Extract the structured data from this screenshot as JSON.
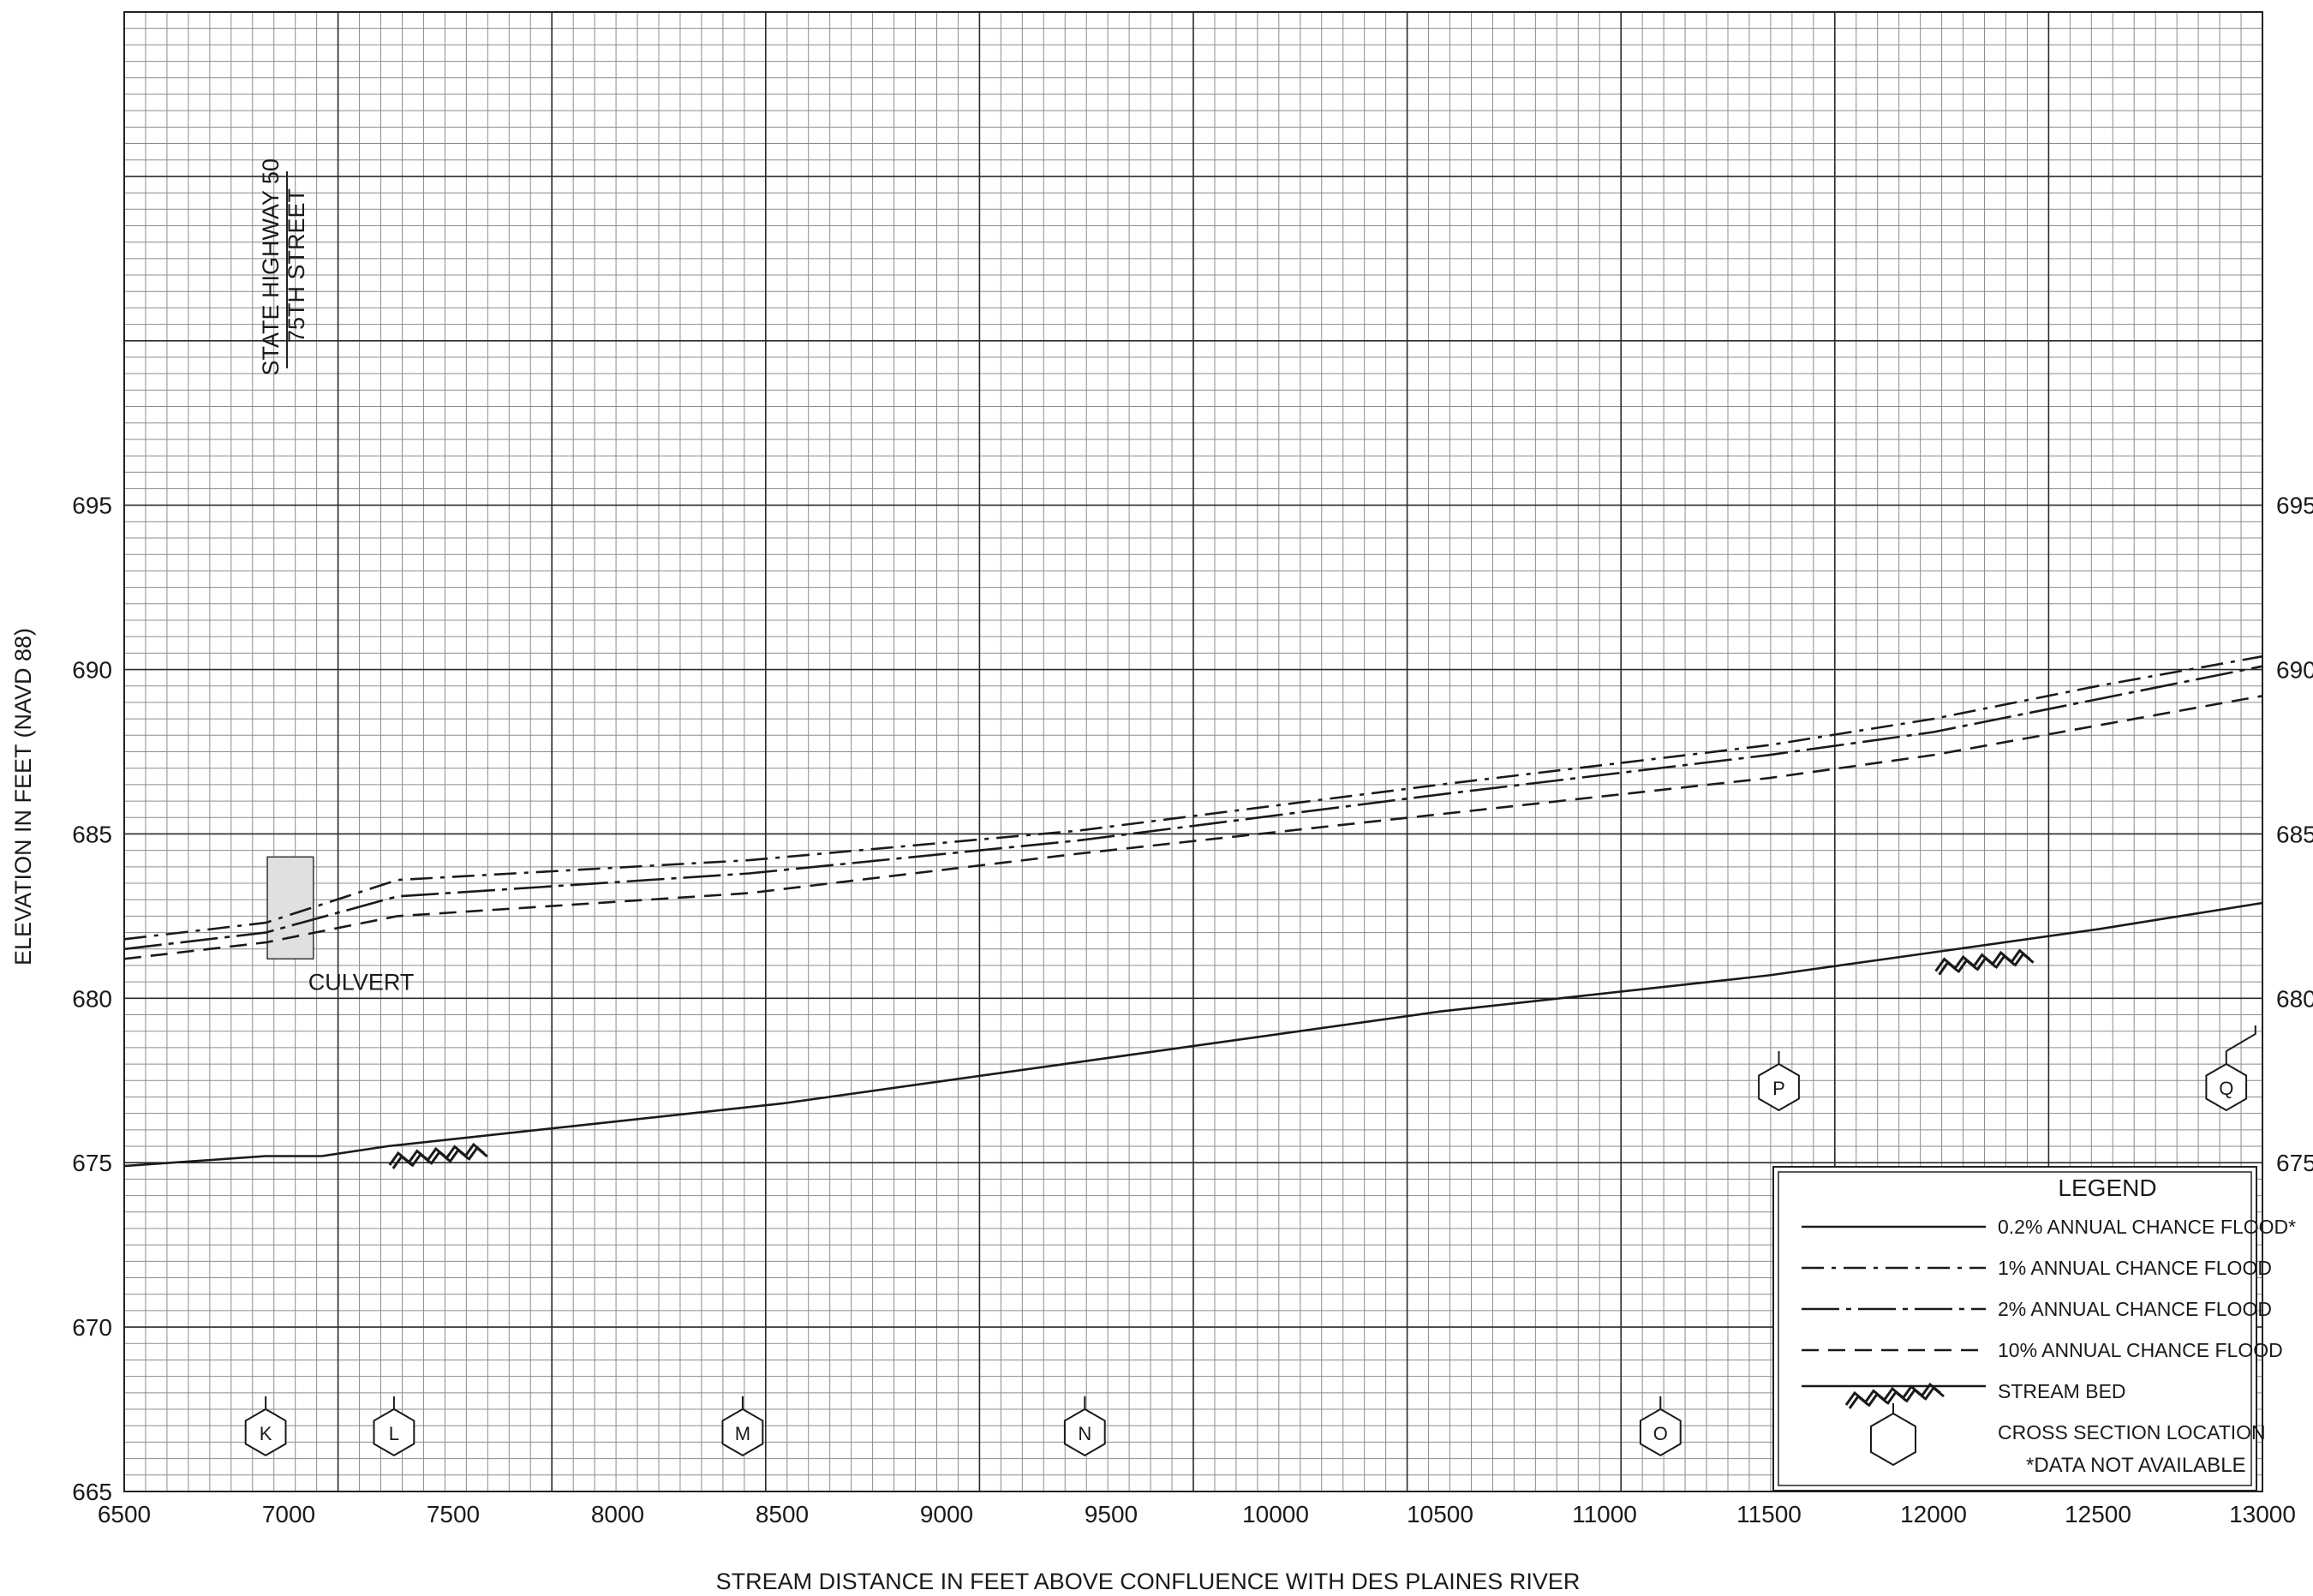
{
  "chart_data": {
    "type": "line",
    "xlabel": "STREAM DISTANCE IN FEET ABOVE CONFLUENCE WITH DES PLAINES RIVER",
    "ylabel": "ELEVATION IN FEET (NAVD 88)",
    "xlim": [
      6500,
      13000
    ],
    "ylim": [
      665,
      710
    ],
    "x_ticks": [
      6500,
      7000,
      7500,
      8000,
      8500,
      9000,
      9500,
      10000,
      10500,
      11000,
      11500,
      12000,
      12500,
      13000
    ],
    "x_tick_labels": [
      "6500",
      "7000",
      "7500",
      "8000",
      "8500",
      "9000",
      "9500",
      "10000",
      "10500",
      "11000",
      "11500",
      "12000",
      "12500",
      "13000"
    ],
    "y_ticks": [
      665,
      670,
      675,
      680,
      685,
      690,
      695
    ],
    "y_tick_labels": [
      "665",
      "670",
      "675",
      "680",
      "685",
      "690",
      "695"
    ],
    "right_y_tick_labels": [
      "675",
      "680",
      "685",
      "690",
      "695"
    ],
    "grid": true,
    "series": [
      {
        "name": "1% ANNUAL CHANCE FLOOD",
        "style": "dashdot",
        "x": [
          6500,
          6930,
          7330,
          8400,
          9400,
          10500,
          11500,
          12000,
          12500,
          13000
        ],
        "y": [
          681.8,
          682.3,
          683.6,
          684.2,
          685.1,
          686.5,
          687.7,
          688.5,
          689.5,
          690.4
        ]
      },
      {
        "name": "2% ANNUAL CHANCE FLOOD",
        "style": "longdashdot",
        "x": [
          6500,
          6930,
          7330,
          8400,
          9400,
          10500,
          11500,
          12000,
          12500,
          13000
        ],
        "y": [
          681.5,
          682.0,
          683.1,
          683.8,
          684.8,
          686.2,
          687.4,
          688.1,
          689.1,
          690.1
        ]
      },
      {
        "name": "10% ANNUAL CHANCE FLOOD",
        "style": "dashed",
        "x": [
          6500,
          6930,
          7330,
          8400,
          9400,
          10500,
          11500,
          12000,
          12500,
          13000
        ],
        "y": [
          681.2,
          681.7,
          682.5,
          683.2,
          684.4,
          685.6,
          686.7,
          687.4,
          688.3,
          689.2
        ]
      },
      {
        "name": "STREAM BED",
        "style": "solid",
        "x": [
          6500,
          6930,
          7100,
          7300,
          8500,
          9500,
          10500,
          11500,
          12000,
          12500,
          13000
        ],
        "y": [
          674.9,
          675.2,
          675.2,
          675.5,
          676.8,
          678.2,
          679.6,
          680.7,
          681.4,
          682.1,
          682.9
        ]
      }
    ],
    "stream_bed_markers": [
      {
        "x": 7450,
        "y": 675.5
      },
      {
        "x": 12150,
        "y": 681.4
      }
    ],
    "cross_sections": [
      {
        "label": "K",
        "x": 6930,
        "y": 666.8
      },
      {
        "label": "L",
        "x": 7320,
        "y": 666.8
      },
      {
        "label": "M",
        "x": 8380,
        "y": 666.8
      },
      {
        "label": "N",
        "x": 9420,
        "y": 666.8
      },
      {
        "label": "O",
        "x": 11170,
        "y": 666.8
      },
      {
        "label": "P",
        "x": 11530,
        "y": 677.3
      },
      {
        "label": "Q",
        "x": 12890,
        "y": 677.3
      }
    ],
    "structures": {
      "culvert_label": "CULVERT",
      "culvert": {
        "x0": 6935,
        "x1": 7075,
        "y0": 681.2,
        "y1": 684.3
      },
      "road1": "STATE HIGHWAY 50",
      "road2": "75TH STREET",
      "road_x": 7000
    },
    "legend": {
      "title": "LEGEND",
      "position": "bottom-right",
      "items": [
        {
          "label": "0.2% ANNUAL CHANCE FLOOD*",
          "style": "solid"
        },
        {
          "label": "1% ANNUAL CHANCE FLOOD",
          "style": "dashdot"
        },
        {
          "label": "2% ANNUAL CHANCE FLOOD",
          "style": "longdashdot"
        },
        {
          "label": "10% ANNUAL CHANCE FLOOD",
          "style": "dashed"
        },
        {
          "label": "STREAM BED",
          "style": "streambed"
        },
        {
          "label": "CROSS SECTION LOCATION",
          "style": "hexagon"
        }
      ],
      "note": "*DATA NOT AVAILABLE"
    }
  }
}
